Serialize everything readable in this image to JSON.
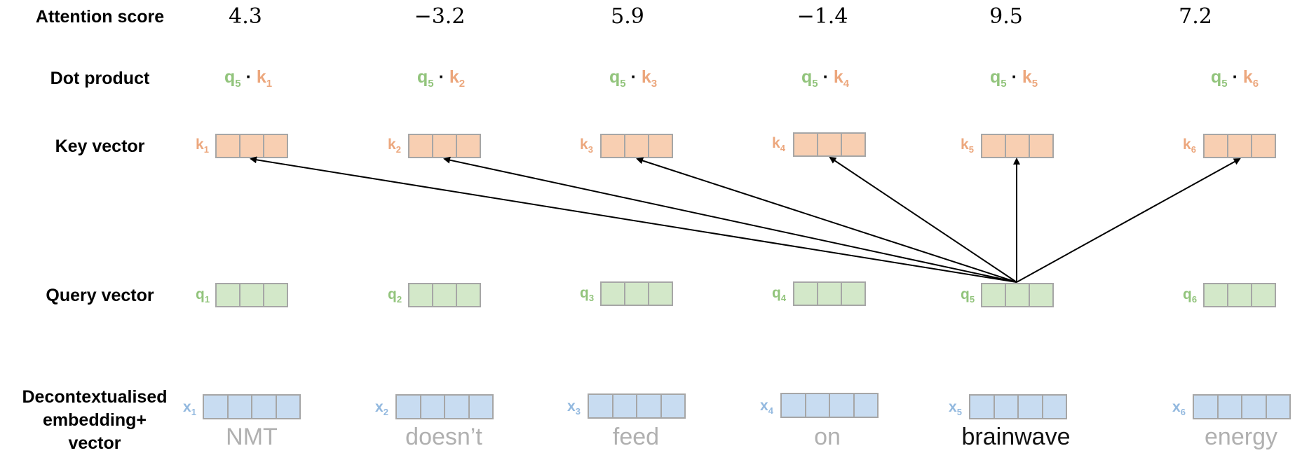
{
  "row_labels": {
    "attention_score": "Attention score",
    "dot_product": "Dot product",
    "key_vector": "Key vector",
    "query_vector": "Query vector",
    "embedding_line1": "Decontextualised",
    "embedding_line2": "embedding+",
    "embedding_line3": "vector"
  },
  "attention_scores": [
    "4.3",
    "−3.2",
    "5.9",
    "−1.4",
    "9.5",
    "7.2"
  ],
  "dot_products": [
    {
      "q": "q",
      "q_sub": "5",
      "sep": "·",
      "k": "k",
      "k_sub": "1"
    },
    {
      "q": "q",
      "q_sub": "5",
      "sep": "·",
      "k": "k",
      "k_sub": "2"
    },
    {
      "q": "q",
      "q_sub": "5",
      "sep": "·",
      "k": "k",
      "k_sub": "3"
    },
    {
      "q": "q",
      "q_sub": "5",
      "sep": "·",
      "k": "k",
      "k_sub": "4"
    },
    {
      "q": "q",
      "q_sub": "5",
      "sep": "·",
      "k": "k",
      "k_sub": "5"
    },
    {
      "q": "q",
      "q_sub": "5",
      "sep": "·",
      "k": "k",
      "k_sub": "6"
    }
  ],
  "key_labels": [
    {
      "letter": "k",
      "sub": "1"
    },
    {
      "letter": "k",
      "sub": "2"
    },
    {
      "letter": "k",
      "sub": "3"
    },
    {
      "letter": "k",
      "sub": "4"
    },
    {
      "letter": "k",
      "sub": "5"
    },
    {
      "letter": "k",
      "sub": "6"
    }
  ],
  "query_labels": [
    {
      "letter": "q",
      "sub": "1"
    },
    {
      "letter": "q",
      "sub": "2"
    },
    {
      "letter": "q",
      "sub": "3"
    },
    {
      "letter": "q",
      "sub": "4"
    },
    {
      "letter": "q",
      "sub": "5"
    },
    {
      "letter": "q",
      "sub": "6"
    }
  ],
  "embedding_labels": [
    {
      "letter": "x",
      "sub": "1"
    },
    {
      "letter": "x",
      "sub": "2"
    },
    {
      "letter": "x",
      "sub": "3"
    },
    {
      "letter": "x",
      "sub": "4"
    },
    {
      "letter": "x",
      "sub": "5"
    },
    {
      "letter": "x",
      "sub": "6"
    }
  ],
  "words": [
    "NMT",
    "doesn’t",
    "feed",
    "on",
    "brainwave",
    "energy"
  ],
  "active_word_index": 4,
  "colors": {
    "query": "#92c47c",
    "key": "#eca77d",
    "embedding": "#93b9df",
    "query_fill": "#d3e8c9",
    "key_fill": "#f8cfb2",
    "embedding_fill": "#c8dcf1",
    "inactive_word": "#b0b0b0"
  }
}
